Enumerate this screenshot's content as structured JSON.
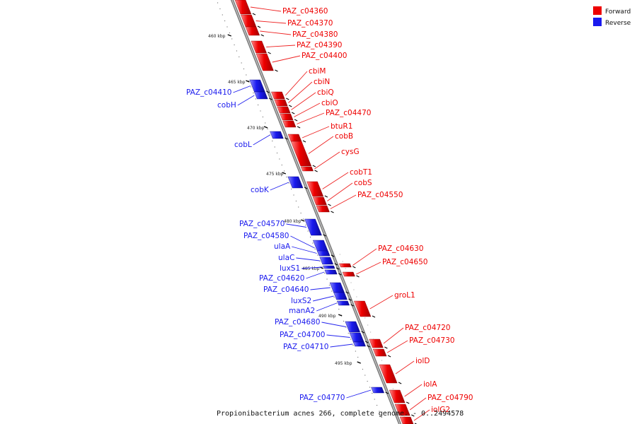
{
  "legend": {
    "forward_label": "Forward",
    "reverse_label": "Reverse",
    "forward_color": "#ee0000",
    "reverse_color": "#1a1aee"
  },
  "caption": "Propionibacterium acnes 266, complete genome. - 0..2494578",
  "map": {
    "kbp_marks": [
      "460 kbp",
      "465 kbp",
      "470 kbp",
      "475 kbp",
      "480 kbp",
      "485 kbp",
      "490 kbp",
      "495 kbp"
    ],
    "forward_genes": [
      "PAZ_c04360",
      "PAZ_c04370",
      "PAZ_c04380",
      "PAZ_c04390",
      "PAZ_c04400",
      "cbiM",
      "cbiN",
      "cbiQ",
      "cbiO",
      "PAZ_c04470",
      "btuR1",
      "cobB",
      "cysG",
      "cobT1",
      "cobS",
      "PAZ_c04550",
      "PAZ_c04630",
      "PAZ_c04650",
      "groL1",
      "PAZ_c04720",
      "PAZ_c04730",
      "iolD",
      "iolA",
      "PAZ_c04790",
      "iolG2"
    ],
    "reverse_genes": [
      "PAZ_c04410",
      "cobH",
      "cobL",
      "cobK",
      "PAZ_c04570",
      "PAZ_c04580",
      "ulaA",
      "ulaC",
      "luxS1",
      "PAZ_c04620",
      "PAZ_c04640",
      "luxS2",
      "manA2",
      "PAZ_c04680",
      "PAZ_c04700",
      "PAZ_c04710",
      "PAZ_c04770"
    ]
  }
}
